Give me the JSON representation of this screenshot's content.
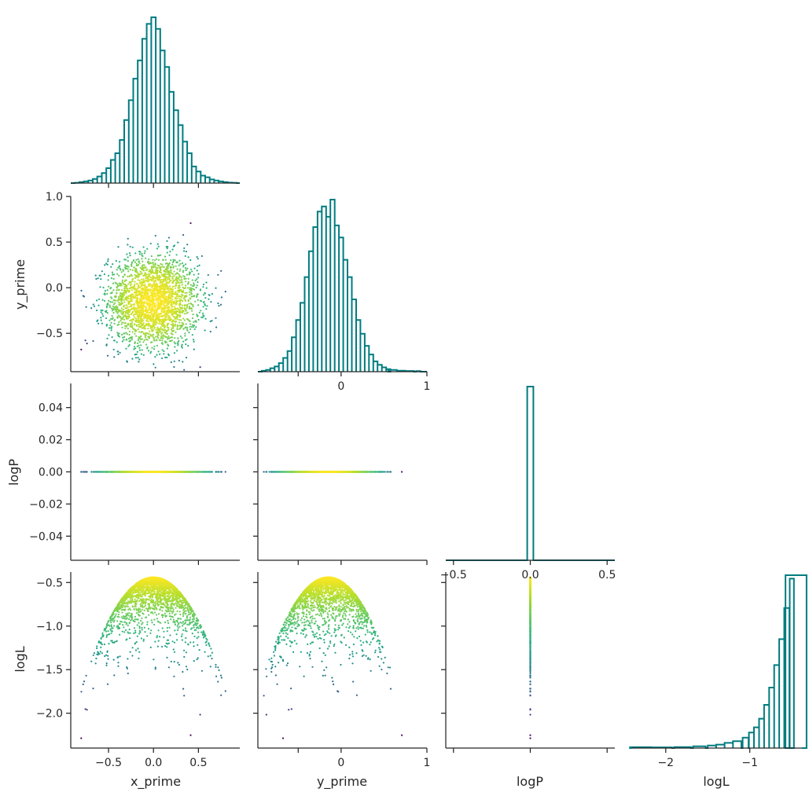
{
  "variables": [
    "x_prime",
    "y_prime",
    "logP",
    "logL"
  ],
  "axis_labels": {
    "x": [
      "x_prime",
      "y_prime",
      "logP",
      "logL"
    ],
    "y": [
      "",
      "y_prime",
      "logP",
      "logL"
    ]
  },
  "colors": {
    "histogram": "#007c80",
    "colormap": "viridis",
    "axis": "#262626",
    "background": "#ffffff"
  },
  "chart_data": [
    {
      "type": "area",
      "panel": "x_prime-hist",
      "style": "step",
      "xlim": [
        -0.92,
        0.96
      ],
      "bins": [
        {
          "x": -0.85,
          "h": 0.002
        },
        {
          "x": -0.8,
          "h": 0.006
        },
        {
          "x": -0.75,
          "h": 0.01
        },
        {
          "x": -0.7,
          "h": 0.015
        },
        {
          "x": -0.65,
          "h": 0.025
        },
        {
          "x": -0.6,
          "h": 0.04
        },
        {
          "x": -0.55,
          "h": 0.06
        },
        {
          "x": -0.5,
          "h": 0.09
        },
        {
          "x": -0.45,
          "h": 0.14
        },
        {
          "x": -0.4,
          "h": 0.18
        },
        {
          "x": -0.35,
          "h": 0.26
        },
        {
          "x": -0.3,
          "h": 0.38
        },
        {
          "x": -0.25,
          "h": 0.5
        },
        {
          "x": -0.2,
          "h": 0.63
        },
        {
          "x": -0.15,
          "h": 0.74
        },
        {
          "x": -0.1,
          "h": 0.87
        },
        {
          "x": -0.05,
          "h": 0.96
        },
        {
          "x": 0.0,
          "h": 1.0
        },
        {
          "x": 0.05,
          "h": 0.93
        },
        {
          "x": 0.1,
          "h": 0.8
        },
        {
          "x": 0.15,
          "h": 0.7
        },
        {
          "x": 0.2,
          "h": 0.55
        },
        {
          "x": 0.25,
          "h": 0.44
        },
        {
          "x": 0.3,
          "h": 0.35
        },
        {
          "x": 0.35,
          "h": 0.25
        },
        {
          "x": 0.4,
          "h": 0.18
        },
        {
          "x": 0.45,
          "h": 0.1
        },
        {
          "x": 0.5,
          "h": 0.07
        },
        {
          "x": 0.55,
          "h": 0.045
        },
        {
          "x": 0.6,
          "h": 0.035
        },
        {
          "x": 0.65,
          "h": 0.022
        },
        {
          "x": 0.7,
          "h": 0.015
        },
        {
          "x": 0.75,
          "h": 0.01
        },
        {
          "x": 0.8,
          "h": 0.006
        },
        {
          "x": 0.85,
          "h": 0.003
        },
        {
          "x": 0.9,
          "h": 0.002
        }
      ]
    },
    {
      "type": "area",
      "panel": "y_prime-hist",
      "style": "step",
      "xlim": [
        -0.97,
        1.0
      ],
      "xticks": [
        -0.5,
        0.0,
        0.5,
        1.0
      ],
      "xticklabels": [
        "",
        "0",
        "",
        "1"
      ],
      "bins": [
        {
          "x": -0.9,
          "h": 0.005
        },
        {
          "x": -0.85,
          "h": 0.01
        },
        {
          "x": -0.8,
          "h": 0.02
        },
        {
          "x": -0.75,
          "h": 0.03
        },
        {
          "x": -0.7,
          "h": 0.05
        },
        {
          "x": -0.65,
          "h": 0.08
        },
        {
          "x": -0.6,
          "h": 0.12
        },
        {
          "x": -0.55,
          "h": 0.2
        },
        {
          "x": -0.5,
          "h": 0.3
        },
        {
          "x": -0.45,
          "h": 0.4
        },
        {
          "x": -0.4,
          "h": 0.55
        },
        {
          "x": -0.35,
          "h": 0.7
        },
        {
          "x": -0.3,
          "h": 0.84
        },
        {
          "x": -0.25,
          "h": 0.93
        },
        {
          "x": -0.2,
          "h": 0.96
        },
        {
          "x": -0.15,
          "h": 0.9
        },
        {
          "x": -0.1,
          "h": 1.0
        },
        {
          "x": -0.05,
          "h": 0.85
        },
        {
          "x": 0.0,
          "h": 0.78
        },
        {
          "x": 0.05,
          "h": 0.65
        },
        {
          "x": 0.1,
          "h": 0.55
        },
        {
          "x": 0.15,
          "h": 0.42
        },
        {
          "x": 0.2,
          "h": 0.3
        },
        {
          "x": 0.25,
          "h": 0.22
        },
        {
          "x": 0.3,
          "h": 0.15
        },
        {
          "x": 0.35,
          "h": 0.1
        },
        {
          "x": 0.4,
          "h": 0.06
        },
        {
          "x": 0.45,
          "h": 0.04
        },
        {
          "x": 0.5,
          "h": 0.025
        },
        {
          "x": 0.55,
          "h": 0.015
        },
        {
          "x": 0.6,
          "h": 0.01
        },
        {
          "x": 0.7,
          "h": 0.006
        },
        {
          "x": 0.8,
          "h": 0.004
        },
        {
          "x": 0.9,
          "h": 0.003
        }
      ]
    },
    {
      "type": "area",
      "panel": "logP-hist",
      "style": "step",
      "xlim": [
        -0.55,
        0.55
      ],
      "xticks": [
        -0.5,
        0.0,
        0.5
      ],
      "xticklabels": [
        "−0.5",
        "0.0",
        "0.5"
      ],
      "bins": [
        {
          "x": 0.0,
          "h": 1.0
        }
      ]
    },
    {
      "type": "area",
      "panel": "logL-hist",
      "style": "step",
      "xlim": [
        -2.4,
        -0.38
      ],
      "xticks": [
        -2,
        -1
      ],
      "xticklabels": [
        "−2",
        "−1"
      ],
      "bins": [
        {
          "x": -2.3,
          "h": 0.005
        },
        {
          "x": -2.05,
          "h": 0.004
        },
        {
          "x": -1.8,
          "h": 0.006
        },
        {
          "x": -1.6,
          "h": 0.01
        },
        {
          "x": -1.45,
          "h": 0.015
        },
        {
          "x": -1.35,
          "h": 0.02
        },
        {
          "x": -1.25,
          "h": 0.03
        },
        {
          "x": -1.15,
          "h": 0.04
        },
        {
          "x": -1.05,
          "h": 0.06
        },
        {
          "x": -0.98,
          "h": 0.09
        },
        {
          "x": -0.92,
          "h": 0.12
        },
        {
          "x": -0.86,
          "h": 0.17
        },
        {
          "x": -0.8,
          "h": 0.25
        },
        {
          "x": -0.74,
          "h": 0.35
        },
        {
          "x": -0.68,
          "h": 0.48
        },
        {
          "x": -0.62,
          "h": 0.63
        },
        {
          "x": -0.56,
          "h": 0.81
        },
        {
          "x": -0.5,
          "h": 0.98
        },
        {
          "x": -0.45,
          "h": 1.0
        }
      ]
    },
    {
      "type": "scatter",
      "panel": "x_prime-vs-y_prime",
      "x_variable": "x_prime",
      "y_variable": "y_prime",
      "xlim": [
        -0.92,
        0.96
      ],
      "ylim": [
        -0.92,
        1.0
      ],
      "n_points": 2600,
      "center": [
        0.0,
        -0.15
      ],
      "spread": [
        0.25,
        0.25
      ],
      "color_by": "logL",
      "colormap": "viridis"
    },
    {
      "type": "scatter",
      "panel": "x_prime-vs-logP",
      "x_variable": "x_prime",
      "y_variable": "logP",
      "xlim": [
        -0.92,
        0.96
      ],
      "ylim": [
        -0.055,
        0.055
      ],
      "x_range": [
        -0.85,
        0.9
      ],
      "y_value": 0.0,
      "color_by": "logL",
      "colormap": "viridis"
    },
    {
      "type": "scatter",
      "panel": "y_prime-vs-logP",
      "x_variable": "y_prime",
      "y_variable": "logP",
      "xlim": [
        -0.97,
        1.0
      ],
      "ylim": [
        -0.055,
        0.055
      ],
      "x_range": [
        -0.9,
        0.92
      ],
      "y_value": 0.0,
      "color_by": "logL",
      "colormap": "viridis"
    },
    {
      "type": "scatter",
      "panel": "x_prime-vs-logL",
      "x_variable": "x_prime",
      "y_variable": "logL",
      "xlim": [
        -0.92,
        0.96
      ],
      "ylim": [
        -2.4,
        -0.38
      ],
      "n_points": 2600,
      "relation": "logL = -0.44 - 2*(x_prime^2 + (y_prime+0.15)^2)",
      "color_by": "logL",
      "colormap": "viridis"
    },
    {
      "type": "scatter",
      "panel": "y_prime-vs-logL",
      "x_variable": "y_prime",
      "y_variable": "logL",
      "xlim": [
        -0.97,
        1.0
      ],
      "ylim": [
        -2.4,
        -0.38
      ],
      "n_points": 2600,
      "relation": "logL = -0.44 - 2*(x_prime^2 + (y_prime+0.15)^2)",
      "color_by": "logL",
      "colormap": "viridis"
    },
    {
      "type": "scatter",
      "panel": "logP-vs-logL",
      "x_variable": "logP",
      "y_variable": "logL",
      "xlim": [
        -0.55,
        0.55
      ],
      "ylim": [
        -2.4,
        -0.38
      ],
      "x_value": 0.0,
      "y_range": [
        -2.32,
        -0.44
      ],
      "color_by": "logL",
      "colormap": "viridis"
    }
  ],
  "axes": {
    "x_prime": {
      "ticks": [
        -0.5,
        0.0,
        0.5
      ],
      "labels": [
        "−0.5",
        "0.0",
        "0.5"
      ]
    },
    "y_prime_row": {
      "ticks": [
        1.0,
        0.5,
        0.0,
        -0.5
      ],
      "labels": [
        "1.0",
        "0.5",
        "0.0",
        "−0.5"
      ]
    },
    "y_prime_col": {
      "ticks": [
        -0.5,
        0.0,
        1.0
      ],
      "labels": [
        "",
        "0",
        "1"
      ]
    },
    "logP_row": {
      "ticks": [
        0.04,
        0.02,
        0.0,
        -0.02,
        -0.04
      ],
      "labels": [
        "0.04",
        "0.02",
        "0.00",
        "−0.02",
        "−0.04"
      ]
    },
    "logP_col": {
      "ticks": [
        -0.5,
        0.0,
        0.5
      ],
      "labels": [
        "−0.5",
        "0.0",
        "0.5"
      ]
    },
    "logL_row": {
      "ticks": [
        -0.5,
        -1.0,
        -1.5,
        -2.0
      ],
      "labels": [
        "−0.5",
        "−1.0",
        "−1.5",
        "−2.0"
      ]
    },
    "logL_col": {
      "ticks": [
        -2,
        -1
      ],
      "labels": [
        "−2",
        "−1"
      ]
    }
  }
}
